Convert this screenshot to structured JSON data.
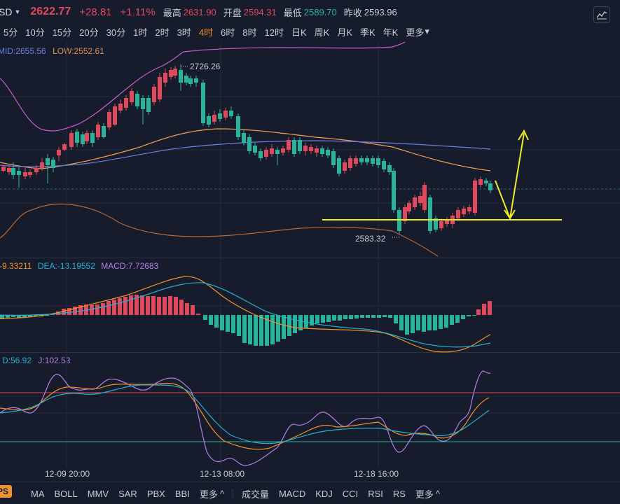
{
  "header": {
    "symbol": "SD",
    "price": "2622.77",
    "change": "+28.81",
    "change_pct": "+1.11%",
    "high_label": "最高",
    "high": "2631.90",
    "open_label": "开盘",
    "open": "2594.31",
    "low_label": "最低",
    "low": "2589.70",
    "prev_close_label": "昨收",
    "prev_close": "2593.96"
  },
  "timeframes": [
    {
      "label": "5分"
    },
    {
      "label": "10分"
    },
    {
      "label": "15分"
    },
    {
      "label": "20分"
    },
    {
      "label": "30分"
    },
    {
      "label": "1时"
    },
    {
      "label": "2时"
    },
    {
      "label": "3时"
    },
    {
      "label": "4时",
      "active": true
    },
    {
      "label": "6时"
    },
    {
      "label": "8时"
    },
    {
      "label": "12时"
    },
    {
      "label": "日K"
    },
    {
      "label": "周K"
    },
    {
      "label": "月K"
    },
    {
      "label": "季K"
    },
    {
      "label": "年K"
    },
    {
      "label": "更多"
    }
  ],
  "boll_legend": {
    "mid": "MID:2655.56",
    "low": "LOW:2552.61"
  },
  "price_annotations": {
    "high": "2726.26",
    "low": "2583.32"
  },
  "macd_legend": {
    "dif": "-9.33211",
    "dea": "DEA:-13.19552",
    "macd": "MACD:7.72683"
  },
  "kdj_legend": {
    "d": "D:56.92",
    "j": "J:102.53"
  },
  "xaxis_labels": [
    "12-09 20:00",
    "12-13 08:00",
    "12-18 16:00"
  ],
  "bottom_toolbar": {
    "tag": "PS",
    "main_indicators": [
      "MA",
      "BOLL",
      "MMV",
      "SAR",
      "PBX",
      "BBI",
      "更多"
    ],
    "sub_indicators": [
      "成交量",
      "MACD",
      "KDJ",
      "CCI",
      "RSI",
      "RS",
      "更多"
    ]
  },
  "colors": {
    "up": "#e0485c",
    "down": "#2ab39b",
    "active": "#f0922e",
    "boll_mid": "#6c7fe0",
    "boll_low": "#e08a52",
    "boll_up": "#c85fd0",
    "annotation": "#f0ec2a"
  }
}
